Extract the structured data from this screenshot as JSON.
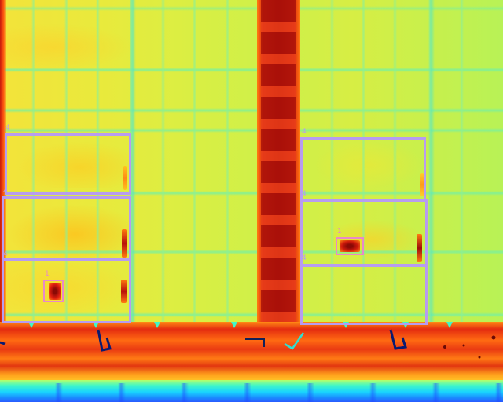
{
  "image": {
    "kind": "thermal false-color image of a solar panel array",
    "palette": [
      "#1a3cff",
      "#19d3ff",
      "#3ff7c8",
      "#b6ff6b",
      "#ecec3a",
      "#ffc21e",
      "#ff7a10",
      "#e22010",
      "#8a0a06"
    ]
  },
  "annotations": [
    {
      "label": "4"
    },
    {
      "label": "4"
    },
    {
      "label": "4"
    },
    {
      "label": "1"
    },
    {
      "label": "4"
    },
    {
      "label": "4"
    },
    {
      "label": "4"
    },
    {
      "label": "1"
    }
  ]
}
